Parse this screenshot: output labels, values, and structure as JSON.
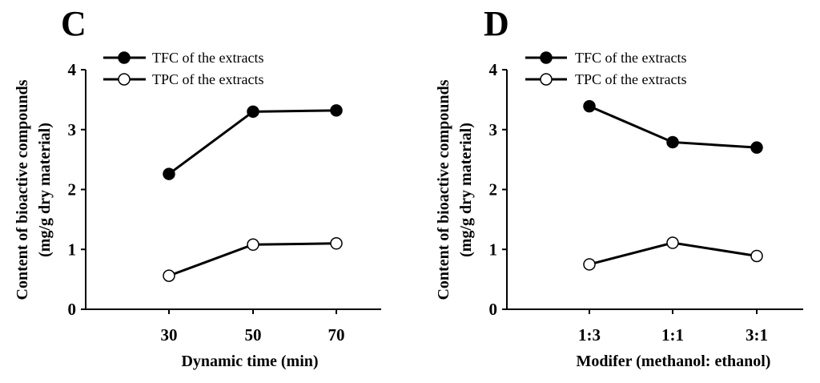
{
  "chart_data": [
    {
      "type": "line",
      "panel_label": "C",
      "categories": [
        "30",
        "50",
        "70"
      ],
      "series": [
        {
          "name": "TFC of the extracts",
          "marker": "filled-circle",
          "values": [
            2.26,
            3.3,
            3.32
          ]
        },
        {
          "name": "TPC of the extracts",
          "marker": "open-circle",
          "values": [
            0.56,
            1.08,
            1.1
          ]
        }
      ],
      "xlabel": "Dynamic time (min)",
      "ylabel": [
        "Content of bioactive compounds",
        "(mg/g dry material)"
      ],
      "ylim": [
        0,
        4
      ],
      "yticks": [
        "0",
        "1",
        "2",
        "3",
        "4"
      ],
      "grid": false,
      "legend_position": "top-left"
    },
    {
      "type": "line",
      "panel_label": "D",
      "categories": [
        "1:3",
        "1:1",
        "3:1"
      ],
      "series": [
        {
          "name": "TFC of the extracts",
          "marker": "filled-circle",
          "values": [
            3.39,
            2.79,
            2.7
          ]
        },
        {
          "name": "TPC of the extracts",
          "marker": "open-circle",
          "values": [
            0.75,
            1.11,
            0.89
          ]
        }
      ],
      "xlabel": "Modifer (methanol: ethanol)",
      "ylabel": [
        "Content of bioactive compounds",
        "(mg/g dry material)"
      ],
      "ylim": [
        0,
        4
      ],
      "yticks": [
        "0",
        "1",
        "2",
        "3",
        "4"
      ],
      "grid": false,
      "legend_position": "top-left"
    }
  ]
}
